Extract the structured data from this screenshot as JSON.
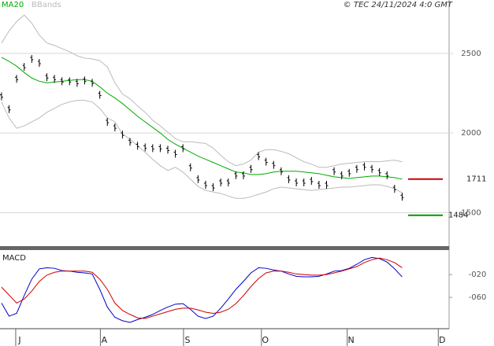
{
  "chart_data": [
    {
      "type": "stock",
      "credit": "© TEC 24/11/2024 4:0 GMT",
      "color": "#000000",
      "values": [
        2230,
        2150,
        2340,
        2415,
        2465,
        2440,
        2350,
        2340,
        2325,
        2325,
        2315,
        2330,
        2315,
        2240,
        2070,
        2035,
        1990,
        1945,
        1920,
        1910,
        1905,
        1905,
        1895,
        1870,
        1905,
        1785,
        1710,
        1675,
        1660,
        1690,
        1690,
        1735,
        1735,
        1775,
        1855,
        1820,
        1800,
        1760,
        1710,
        1690,
        1690,
        1700,
        1675,
        1675,
        1760,
        1735,
        1750,
        1775,
        1790,
        1775,
        1755,
        1735,
        1650,
        1600
      ],
      "ma": {
        "name": "MA20",
        "color": "#00aa00",
        "values": [
          2475,
          2450,
          2420,
          2380,
          2345,
          2325,
          2315,
          2320,
          2325,
          2330,
          2335,
          2335,
          2325,
          2290,
          2250,
          2220,
          2185,
          2145,
          2105,
          2070,
          2035,
          2000,
          1960,
          1930,
          1905,
          1880,
          1855,
          1835,
          1815,
          1795,
          1775,
          1755,
          1750,
          1740,
          1740,
          1745,
          1755,
          1760,
          1760,
          1760,
          1755,
          1750,
          1745,
          1735,
          1725,
          1720,
          1715,
          1720,
          1725,
          1730,
          1730,
          1725,
          1720,
          1710
        ]
      },
      "bands": {
        "name": "BBands",
        "color": "#bbbbbb",
        "upper": [
          2565,
          2640,
          2700,
          2740,
          2690,
          2615,
          2565,
          2550,
          2530,
          2510,
          2485,
          2470,
          2465,
          2455,
          2415,
          2315,
          2245,
          2215,
          2170,
          2130,
          2080,
          2045,
          2005,
          1965,
          1945,
          1945,
          1940,
          1935,
          1905,
          1860,
          1820,
          1795,
          1805,
          1830,
          1880,
          1895,
          1895,
          1885,
          1870,
          1845,
          1820,
          1805,
          1785,
          1785,
          1795,
          1805,
          1810,
          1815,
          1820,
          1820,
          1820,
          1825,
          1830,
          1820
        ],
        "lower": [
          2195,
          2095,
          2030,
          2045,
          2070,
          2095,
          2130,
          2155,
          2180,
          2195,
          2205,
          2205,
          2195,
          2155,
          2095,
          2070,
          1995,
          1960,
          1920,
          1880,
          1835,
          1795,
          1765,
          1785,
          1755,
          1710,
          1665,
          1640,
          1630,
          1620,
          1605,
          1590,
          1590,
          1600,
          1615,
          1630,
          1650,
          1660,
          1655,
          1650,
          1645,
          1640,
          1645,
          1650,
          1655,
          1660,
          1660,
          1665,
          1670,
          1675,
          1675,
          1665,
          1650,
          1625
        ]
      },
      "levels": [
        {
          "value": 1711,
          "color": "#cc0000"
        },
        {
          "value": 1484,
          "color": "#009900"
        }
      ],
      "xlim": [
        -0.2,
        59
      ],
      "ylim": [
        1290,
        2835
      ],
      "yticks": [
        1500,
        2000,
        2500
      ],
      "grid": true
    },
    {
      "type": "line",
      "title": "MACD",
      "series": [
        {
          "color": "#0000cc",
          "values": [
            -70,
            -93,
            -88,
            -57,
            -28,
            -10,
            -8,
            -9,
            -13,
            -14,
            -16,
            -17,
            -19,
            -46,
            -77,
            -95,
            -101,
            -104,
            -99,
            -95,
            -90,
            -83,
            -77,
            -72,
            -71,
            -81,
            -93,
            -97,
            -93,
            -79,
            -63,
            -46,
            -32,
            -17,
            -8,
            -9,
            -12,
            -14,
            -19,
            -23,
            -24,
            -24,
            -23,
            -19,
            -14,
            -13,
            -9,
            -2,
            6,
            10,
            8,
            2,
            -10,
            -24
          ]
        },
        {
          "color": "#cc0000",
          "values": [
            -42,
            -56,
            -70,
            -63,
            -49,
            -32,
            -21,
            -16,
            -14,
            -14,
            -14,
            -14,
            -16,
            -28,
            -46,
            -70,
            -83,
            -90,
            -96,
            -97,
            -93,
            -89,
            -85,
            -81,
            -79,
            -79,
            -82,
            -86,
            -88,
            -86,
            -81,
            -71,
            -57,
            -41,
            -27,
            -17,
            -14,
            -14,
            -16,
            -19,
            -20,
            -21,
            -21,
            -20,
            -17,
            -14,
            -10,
            -6,
            1,
            6,
            9,
            6,
            1,
            -8
          ]
        }
      ],
      "xlim": [
        -0.2,
        59
      ],
      "xticks": [
        {
          "value": 2.4,
          "label": "J"
        },
        {
          "value": 13.6,
          "label": "A"
        },
        {
          "value": 24.6,
          "label": "S"
        },
        {
          "value": 34.9,
          "label": "O"
        },
        {
          "value": 46.25,
          "label": "N"
        },
        {
          "value": 58.3,
          "label": "D"
        }
      ],
      "ylim": [
        -115,
        23
      ],
      "yticks": [
        {
          "value": -20,
          "label": "-020"
        },
        {
          "value": -60,
          "label": "-060"
        }
      ],
      "grid": false
    }
  ]
}
